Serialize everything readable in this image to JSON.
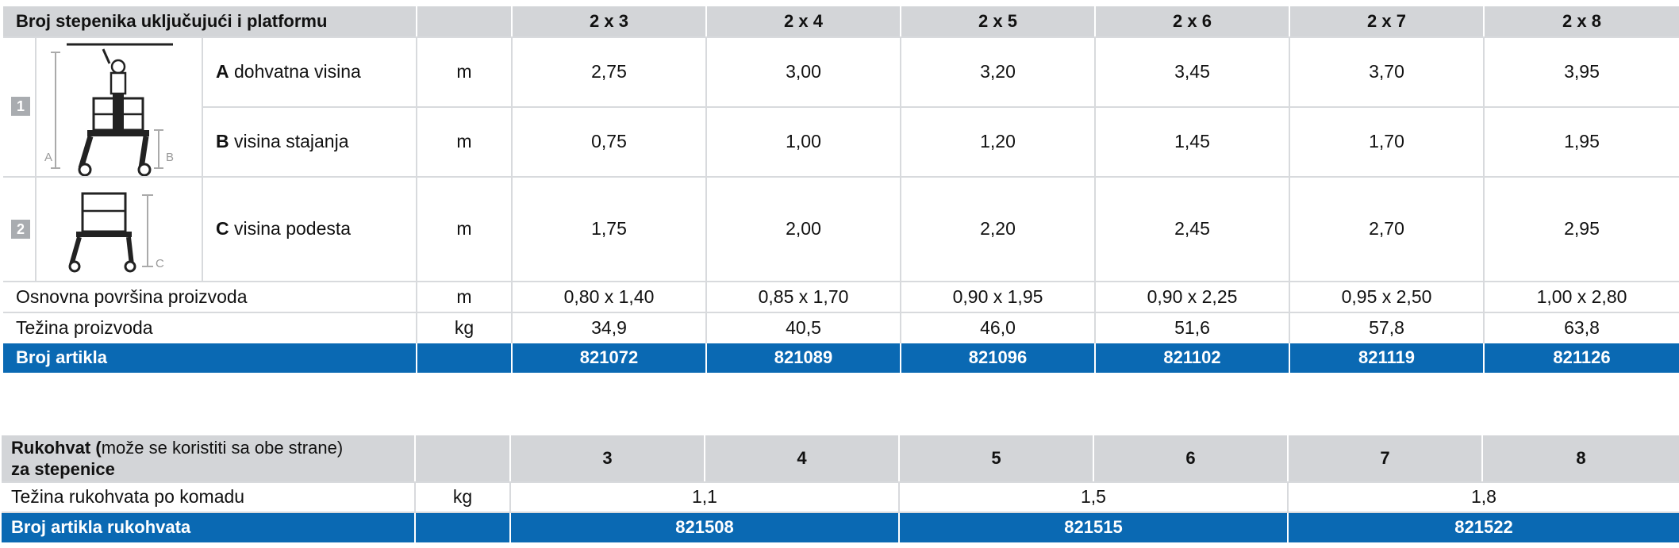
{
  "table1": {
    "header_label": "Broj stepenika uključujući i platformu",
    "columns": [
      "2 x 3",
      "2 x 4",
      "2 x 5",
      "2 x 6",
      "2 x 7",
      "2 x 8"
    ],
    "group1_number": "1",
    "group2_number": "2",
    "diagram_labels": {
      "a": "A",
      "b": "B",
      "c": "C"
    },
    "rows": [
      {
        "letter": "A",
        "label": "dohvatna visina",
        "unit": "m",
        "values": [
          "2,75",
          "3,00",
          "3,20",
          "3,45",
          "3,70",
          "3,95"
        ]
      },
      {
        "letter": "B",
        "label": "visina stajanja",
        "unit": "m",
        "values": [
          "0,75",
          "1,00",
          "1,20",
          "1,45",
          "1,70",
          "1,95"
        ]
      },
      {
        "letter": "C",
        "label": "visina podesta",
        "unit": "m",
        "values": [
          "1,75",
          "2,00",
          "2,20",
          "2,45",
          "2,70",
          "2,95"
        ]
      },
      {
        "label": "Osnovna površina proizvoda",
        "unit": "m",
        "values": [
          "0,80 x 1,40",
          "0,85 x 1,70",
          "0,90 x 1,95",
          "0,90 x 2,25",
          "0,95 x 2,50",
          "1,00 x 2,80"
        ]
      },
      {
        "label": "Težina proizvoda",
        "unit": "kg",
        "values": [
          "34,9",
          "40,5",
          "46,0",
          "51,6",
          "57,8",
          "63,8"
        ]
      }
    ],
    "article_label": "Broj artikla",
    "articles": [
      "821072",
      "821089",
      "821096",
      "821102",
      "821119",
      "821126"
    ]
  },
  "table2": {
    "header_bold": "Rukohvat (",
    "header_normal": "može se koristiti sa obe strane)",
    "header_line2": "za stepenice",
    "columns": [
      "3",
      "4",
      "5",
      "6",
      "7",
      "8"
    ],
    "weight_label": "Težina rukohvata po komadu",
    "weight_unit": "kg",
    "weights": [
      "1,1",
      "1,5",
      "1,8"
    ],
    "article_label": "Broj artikla rukohvata",
    "articles": [
      "821508",
      "821515",
      "821522"
    ]
  }
}
